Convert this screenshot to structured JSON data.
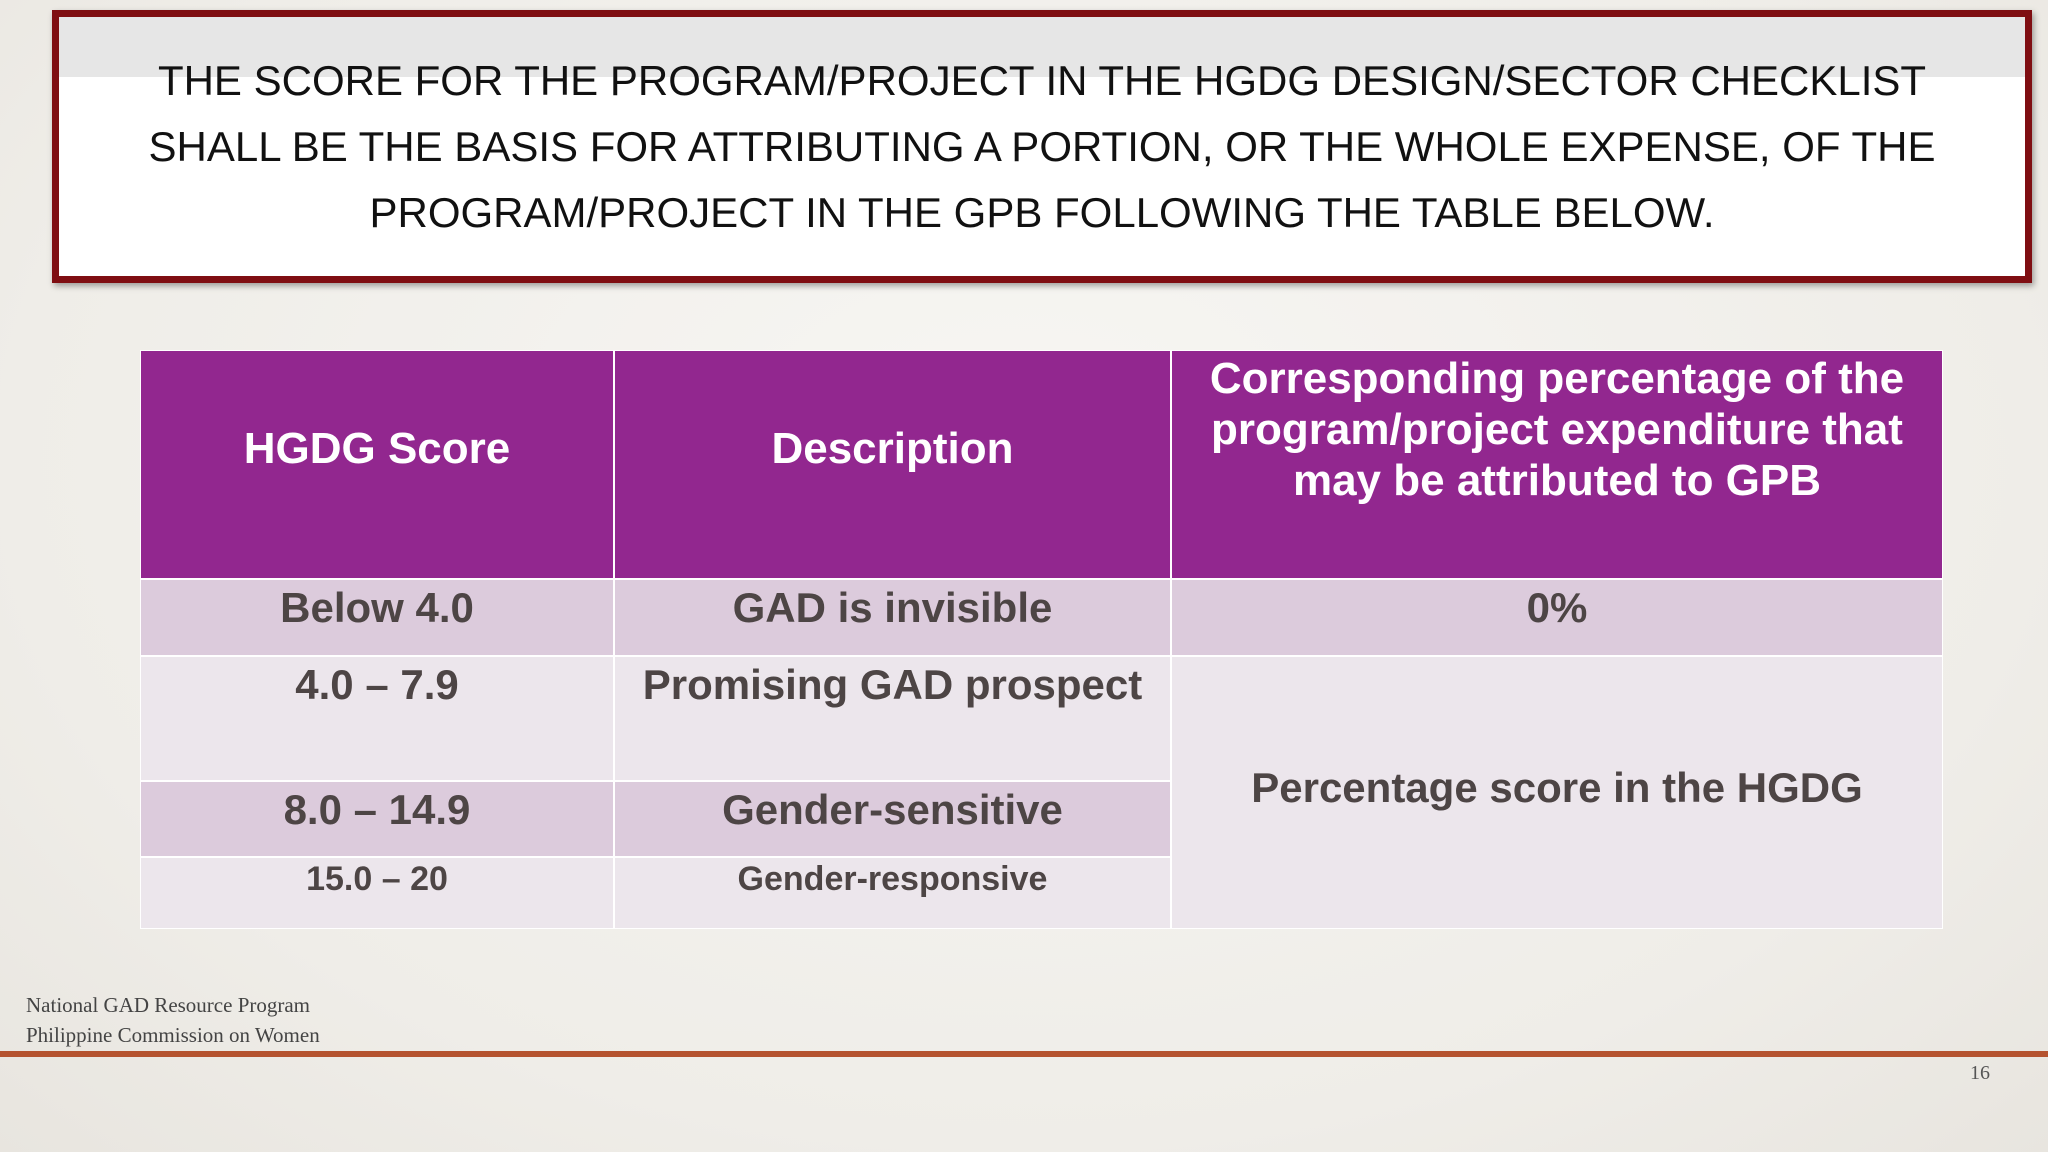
{
  "title": "THE SCORE FOR THE PROGRAM/PROJECT IN THE HGDG DESIGN/SECTOR CHECKLIST  SHALL BE THE BASIS FOR ATTRIBUTING A PORTION, OR THE WHOLE EXPENSE, OF THE  PROGRAM/PROJECT IN THE GPB FOLLOWING THE TABLE BELOW.",
  "table": {
    "header": [
      "HGDG Score",
      "Description",
      "Corresponding percentage of the program/project expenditure that may be attributed to GPB"
    ],
    "rows": [
      [
        "Below 4.0",
        "GAD is invisible",
        "0%"
      ],
      [
        "4.0 – 7.9",
        "Promising GAD prospect",
        "Percentage score in the HGDG"
      ],
      [
        "8.0 – 14.9",
        "Gender-sensitive"
      ],
      [
        "15.0 – 20",
        "Gender-responsive"
      ]
    ]
  },
  "footer": {
    "organization": "National GAD Resource Program Philippine Commission on Women",
    "page_number": "16"
  }
}
